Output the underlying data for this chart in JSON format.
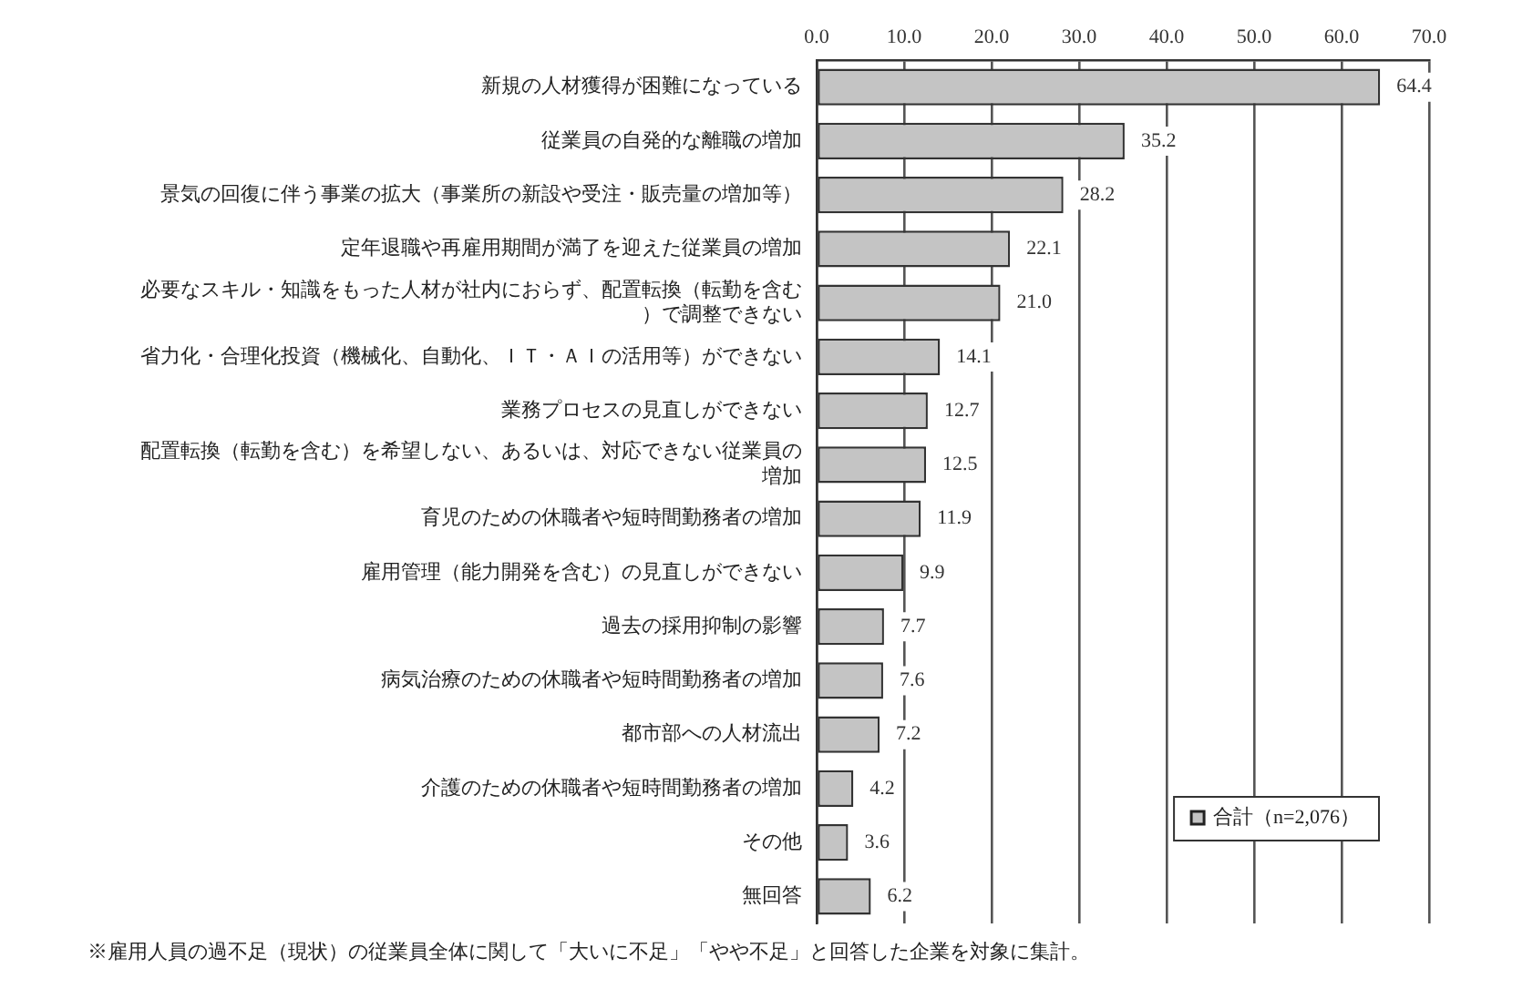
{
  "chart_data": {
    "type": "bar",
    "orientation": "horizontal",
    "categories": [
      "新規の人材獲得が困難になっている",
      "従業員の自発的な離職の増加",
      "景気の回復に伴う事業の拡大（事業所の新設や受注・販売量の増加等）",
      "定年退職や再雇用期間が満了を迎えた従業員の増加",
      "必要なスキル・知識をもった人材が社内におらず、配置転換（転勤を含む）で調整できない",
      "省力化・合理化投資（機械化、自動化、ＩＴ・ＡＩの活用等）ができない",
      "業務プロセスの見直しができない",
      "配置転換（転勤を含む）を希望しない、あるいは、対応できない従業員の増加",
      "育児のための休職者や短時間勤務者の増加",
      "雇用管理（能力開発を含む）の見直しができない",
      "過去の採用抑制の影響",
      "病気治療のための休職者や短時間勤務者の増加",
      "都市部への人材流出",
      "介護のための休職者や短時間勤務者の増加",
      "その他",
      "無回答"
    ],
    "series": [
      {
        "name": "合計（n=2,076）",
        "color": "#c4c4c4",
        "values": [
          64.4,
          35.2,
          28.2,
          22.1,
          21.0,
          14.1,
          12.7,
          12.5,
          11.9,
          9.9,
          7.7,
          7.6,
          7.2,
          4.2,
          3.6,
          6.2
        ],
        "value_labels": [
          "64.4",
          "35.2",
          "28.2",
          "22.1",
          "21.0",
          "14.1",
          "12.7",
          "12.5",
          "11.9",
          "9.9",
          "7.7",
          "7.6",
          "7.2",
          "4.2",
          "3.6",
          "6.2"
        ]
      }
    ],
    "xlim": [
      0,
      70
    ],
    "xticks": [
      {
        "value": 0,
        "label": "0.0"
      },
      {
        "value": 10,
        "label": "10.0"
      },
      {
        "value": 20,
        "label": "20.0"
      },
      {
        "value": 30,
        "label": "30.0"
      },
      {
        "value": 40,
        "label": "40.0"
      },
      {
        "value": 50,
        "label": "50.0"
      },
      {
        "value": 60,
        "label": "60.0"
      },
      {
        "value": 70,
        "label": "70.0"
      }
    ],
    "grid": "x",
    "legend": "bottom right",
    "annotations": [
      "※雇用人員の過不足（現状）の従業員全体に関して「大いに不足」「やや不足」と回答した企業を対象に集計。"
    ]
  }
}
